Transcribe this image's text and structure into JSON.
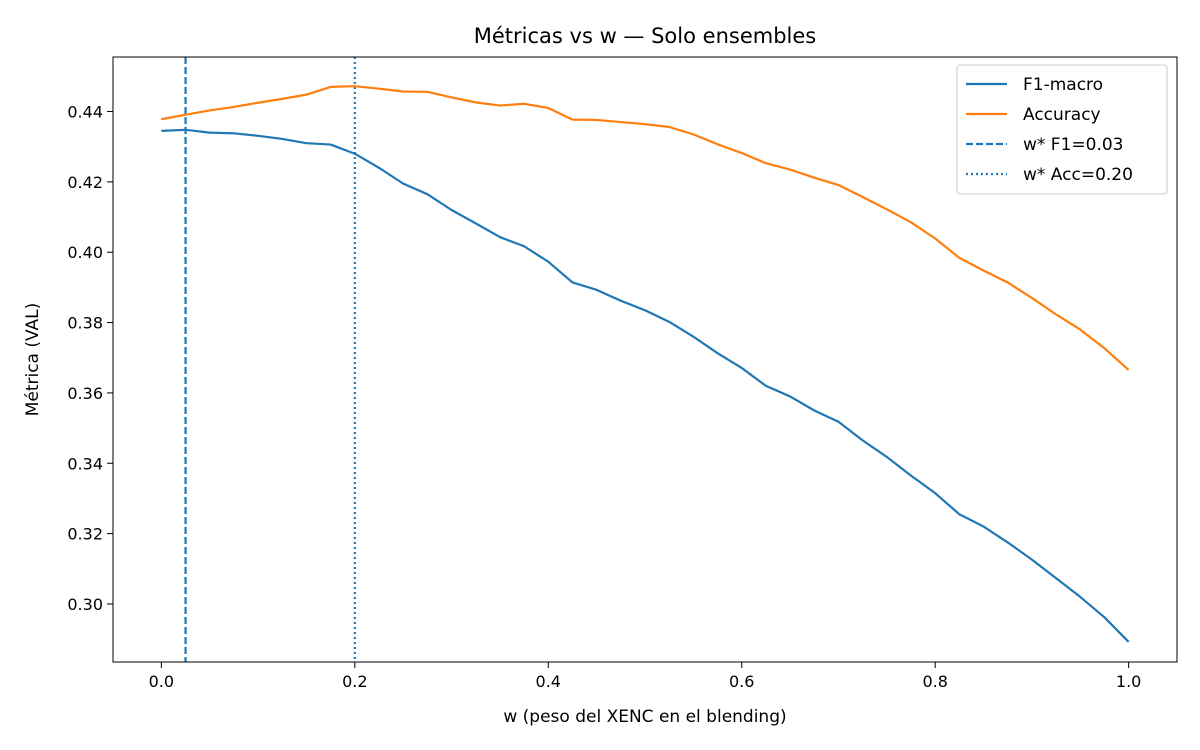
{
  "chart_data": {
    "type": "line",
    "title": "Métricas vs w — Solo ensembles",
    "xlabel": "w (peso del XENC en el blending)",
    "ylabel": "Métrica (VAL)",
    "xlim": [
      -0.05,
      1.05
    ],
    "ylim": [
      0.2835,
      0.4555
    ],
    "xticks": [
      0.0,
      0.2,
      0.4,
      0.6,
      0.8,
      1.0
    ],
    "xtick_labels": [
      "0.0",
      "0.2",
      "0.4",
      "0.6",
      "0.8",
      "1.0"
    ],
    "yticks": [
      0.3,
      0.32,
      0.34,
      0.36,
      0.38,
      0.4,
      0.42,
      0.44
    ],
    "ytick_labels": [
      "0.30",
      "0.32",
      "0.34",
      "0.36",
      "0.38",
      "0.40",
      "0.42",
      "0.44"
    ],
    "grid": false,
    "legend_position": "top-right",
    "series": [
      {
        "name": "F1-macro",
        "color": "#1f77b4",
        "style": "solid",
        "x": [
          0.0,
          0.025,
          0.05,
          0.075,
          0.1,
          0.125,
          0.15,
          0.175,
          0.2,
          0.225,
          0.25,
          0.275,
          0.3,
          0.325,
          0.35,
          0.375,
          0.4,
          0.425,
          0.45,
          0.475,
          0.5,
          0.525,
          0.55,
          0.575,
          0.6,
          0.625,
          0.65,
          0.675,
          0.7,
          0.725,
          0.75,
          0.775,
          0.8,
          0.825,
          0.85,
          0.875,
          0.9,
          0.925,
          0.95,
          0.975,
          1.0
        ],
        "y": [
          0.4345,
          0.4348,
          0.434,
          0.4338,
          0.4331,
          0.4322,
          0.431,
          0.4306,
          0.428,
          0.424,
          0.4195,
          0.4165,
          0.412,
          0.4082,
          0.4043,
          0.4017,
          0.3973,
          0.3914,
          0.3893,
          0.3862,
          0.3835,
          0.3802,
          0.376,
          0.3713,
          0.3671,
          0.362,
          0.359,
          0.355,
          0.3518,
          0.3465,
          0.3418,
          0.3365,
          0.3315,
          0.3255,
          0.322,
          0.3175,
          0.3126,
          0.3073,
          0.302,
          0.2962,
          0.2892
        ]
      },
      {
        "name": "Accuracy",
        "color": "#ff7f0e",
        "style": "solid",
        "x": [
          0.0,
          0.025,
          0.05,
          0.075,
          0.1,
          0.125,
          0.15,
          0.175,
          0.2,
          0.225,
          0.25,
          0.275,
          0.3,
          0.325,
          0.35,
          0.375,
          0.4,
          0.425,
          0.45,
          0.475,
          0.5,
          0.525,
          0.55,
          0.575,
          0.6,
          0.625,
          0.65,
          0.675,
          0.7,
          0.725,
          0.75,
          0.775,
          0.8,
          0.825,
          0.85,
          0.875,
          0.9,
          0.925,
          0.95,
          0.975,
          1.0
        ],
        "y": [
          0.4378,
          0.4391,
          0.4403,
          0.4413,
          0.4425,
          0.4436,
          0.4448,
          0.447,
          0.4472,
          0.4465,
          0.4457,
          0.4456,
          0.444,
          0.4426,
          0.4417,
          0.4422,
          0.441,
          0.4377,
          0.4376,
          0.437,
          0.4364,
          0.4356,
          0.4335,
          0.4307,
          0.4282,
          0.4253,
          0.4235,
          0.4212,
          0.4191,
          0.4157,
          0.4122,
          0.4085,
          0.4039,
          0.3984,
          0.3948,
          0.3914,
          0.387,
          0.3823,
          0.378,
          0.3727,
          0.3665
        ]
      }
    ],
    "vlines": [
      {
        "name": "w* F1=0.03",
        "x": 0.025,
        "color": "#1f77b4",
        "style": "dashed"
      },
      {
        "name": "w* Acc=0.20",
        "x": 0.2,
        "color": "#1f77b4",
        "style": "dotted"
      }
    ]
  }
}
